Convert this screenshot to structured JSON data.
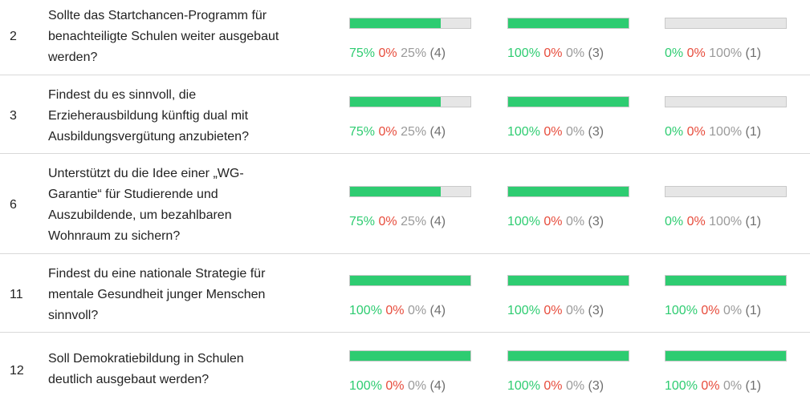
{
  "rows": [
    {
      "number": "2",
      "question": "Sollte das Startchancen-Programm für benachteiligte Schulen weiter ausgebaut werden?",
      "results": [
        {
          "yes": "75%",
          "no": "0%",
          "abstain": "25%",
          "count": "(4)",
          "fill": 0.75
        },
        {
          "yes": "100%",
          "no": "0%",
          "abstain": "0%",
          "count": "(3)",
          "fill": 1.0
        },
        {
          "yes": "0%",
          "no": "0%",
          "abstain": "100%",
          "count": "(1)",
          "fill": 0.0
        }
      ]
    },
    {
      "number": "3",
      "question": "Findest du es sinnvoll, die Erzieherausbildung künftig dual mit Ausbildungsvergütung anzubieten?",
      "results": [
        {
          "yes": "75%",
          "no": "0%",
          "abstain": "25%",
          "count": "(4)",
          "fill": 0.75
        },
        {
          "yes": "100%",
          "no": "0%",
          "abstain": "0%",
          "count": "(3)",
          "fill": 1.0
        },
        {
          "yes": "0%",
          "no": "0%",
          "abstain": "100%",
          "count": "(1)",
          "fill": 0.0
        }
      ]
    },
    {
      "number": "6",
      "question": "Unterstützt du die Idee einer „WG-Garantie“ für Studierende und Auszubildende, um bezahlbaren Wohnraum zu sichern?",
      "results": [
        {
          "yes": "75%",
          "no": "0%",
          "abstain": "25%",
          "count": "(4)",
          "fill": 0.75
        },
        {
          "yes": "100%",
          "no": "0%",
          "abstain": "0%",
          "count": "(3)",
          "fill": 1.0
        },
        {
          "yes": "0%",
          "no": "0%",
          "abstain": "100%",
          "count": "(1)",
          "fill": 0.0
        }
      ]
    },
    {
      "number": "11",
      "question": "Findest du eine nationale Strategie für mentale Gesundheit junger Menschen sinnvoll?",
      "results": [
        {
          "yes": "100%",
          "no": "0%",
          "abstain": "0%",
          "count": "(4)",
          "fill": 1.0
        },
        {
          "yes": "100%",
          "no": "0%",
          "abstain": "0%",
          "count": "(3)",
          "fill": 1.0
        },
        {
          "yes": "100%",
          "no": "0%",
          "abstain": "0%",
          "count": "(1)",
          "fill": 1.0
        }
      ]
    },
    {
      "number": "12",
      "question": "Soll Demokratiebildung in Schulen deutlich ausgebaut werden?",
      "results": [
        {
          "yes": "100%",
          "no": "0%",
          "abstain": "0%",
          "count": "(4)",
          "fill": 1.0
        },
        {
          "yes": "100%",
          "no": "0%",
          "abstain": "0%",
          "count": "(3)",
          "fill": 1.0
        },
        {
          "yes": "100%",
          "no": "0%",
          "abstain": "0%",
          "count": "(1)",
          "fill": 1.0
        }
      ]
    }
  ]
}
